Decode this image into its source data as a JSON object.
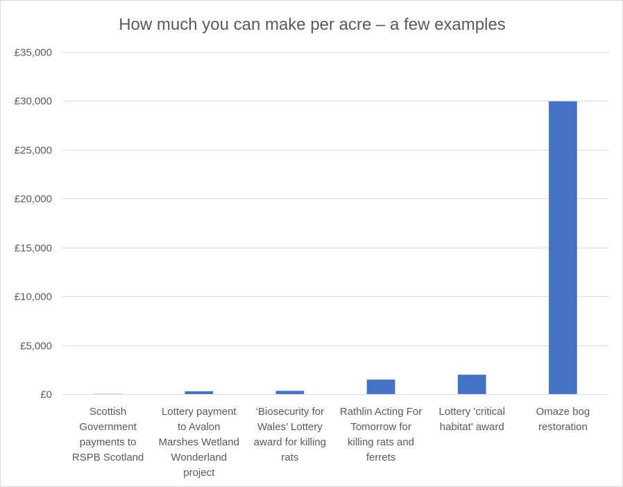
{
  "chart_data": {
    "type": "bar",
    "title": "How much you can make per acre – a few examples",
    "xlabel": "",
    "ylabel": "",
    "ylim": [
      0,
      35000
    ],
    "yticks": [
      0,
      5000,
      10000,
      15000,
      20000,
      25000,
      30000,
      35000
    ],
    "ytick_labels": [
      "£0",
      "£5,000",
      "£10,000",
      "£15,000",
      "£20,000",
      "£25,000",
      "£30,000",
      "£35,000"
    ],
    "grid": true,
    "categories": [
      [
        "Scottish",
        "Government",
        "payments to",
        "RSPB Scotland"
      ],
      [
        "Lottery payment",
        "to Avalon",
        "Marshes Wetland",
        "Wonderland",
        "project"
      ],
      [
        "‘Biosecurity for",
        "Wales’ Lottery",
        "award for killing",
        "rats"
      ],
      [
        "Rathlin Acting For",
        "Tomorrow for",
        "killing rats and",
        "ferrets"
      ],
      [
        "Lottery 'critical",
        "habitat' award"
      ],
      [
        "Omaze bog",
        "restoration"
      ]
    ],
    "values": [
      20,
      280,
      330,
      1480,
      1980,
      29950
    ],
    "bar_color": "#4472c4"
  }
}
